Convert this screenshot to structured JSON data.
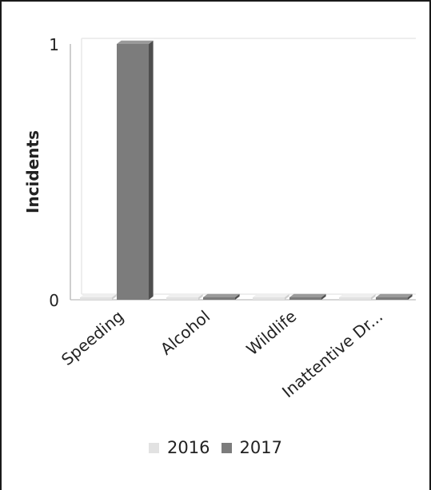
{
  "colors": {
    "series_2016": "#e2e2e2",
    "series_2017": "#7c7c7c",
    "series_2017_top": "#9a9a9a",
    "series_2017_side": "#4e4e4e",
    "grid": "#e9e9e9",
    "axis_line": "#bdbdbd"
  },
  "chart_data": {
    "type": "bar",
    "title": "",
    "xlabel": "",
    "ylabel": "Incidents",
    "categories": [
      "Speeding",
      "Alcohol",
      "Wildlife",
      "Inattentive Dr..."
    ],
    "series": [
      {
        "name": "2016",
        "values": [
          0,
          0,
          0,
          0
        ]
      },
      {
        "name": "2017",
        "values": [
          1,
          0,
          0,
          0
        ]
      }
    ],
    "ylim": [
      0,
      1
    ],
    "yticks": [
      0,
      1
    ],
    "grid": true,
    "legend_position": "bottom",
    "style": "3d"
  }
}
